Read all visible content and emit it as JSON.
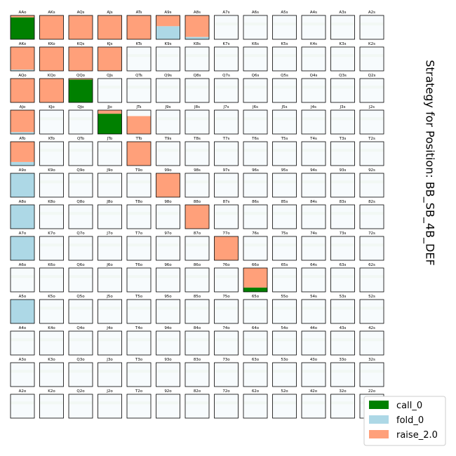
{
  "chart_data": {
    "type": "heatmap",
    "title": "Strategy for Position: BB_SB_4B_DEF",
    "actions": [
      {
        "key": "call",
        "label": "call_0",
        "color": "#008000"
      },
      {
        "key": "fold",
        "label": "fold_0",
        "color": "#add8e6"
      },
      {
        "key": "raise",
        "label": "raise_2.0",
        "color": "#ffa07a"
      }
    ],
    "cell_background": "#f7fbfd",
    "ranks": [
      "A",
      "K",
      "Q",
      "J",
      "T",
      "9",
      "8",
      "7",
      "6",
      "5",
      "4",
      "3",
      "2"
    ],
    "hands": [
      [
        "AAo",
        "AKs",
        "AQs",
        "AJs",
        "ATs",
        "A9s",
        "A8s",
        "A7s",
        "A6s",
        "A5s",
        "A4s",
        "A3s",
        "A2s"
      ],
      [
        "AKo",
        "KKo",
        "KQs",
        "KJs",
        "KTs",
        "K9s",
        "K8s",
        "K7s",
        "K6s",
        "K5s",
        "K4s",
        "K3s",
        "K2s"
      ],
      [
        "AQo",
        "KQo",
        "QQo",
        "QJs",
        "QTs",
        "Q9s",
        "Q8s",
        "Q7s",
        "Q6s",
        "Q5s",
        "Q4s",
        "Q3s",
        "Q2s"
      ],
      [
        "AJo",
        "KJo",
        "QJo",
        "JJo",
        "JTs",
        "J9s",
        "J8s",
        "J7s",
        "J6s",
        "J5s",
        "J4s",
        "J3s",
        "J2s"
      ],
      [
        "ATo",
        "KTo",
        "QTo",
        "JTo",
        "TTo",
        "T9s",
        "T8s",
        "T7s",
        "T6s",
        "T5s",
        "T4s",
        "T3s",
        "T2s"
      ],
      [
        "A9o",
        "K9o",
        "Q9o",
        "J9o",
        "T9o",
        "99o",
        "98s",
        "97s",
        "96s",
        "95s",
        "94s",
        "93s",
        "92s"
      ],
      [
        "A8o",
        "K8o",
        "Q8o",
        "J8o",
        "T8o",
        "98o",
        "88o",
        "87s",
        "86s",
        "85s",
        "84s",
        "83s",
        "82s"
      ],
      [
        "A7o",
        "K7o",
        "Q7o",
        "J7o",
        "T7o",
        "97o",
        "87o",
        "77o",
        "76s",
        "75s",
        "74s",
        "73s",
        "72s"
      ],
      [
        "A6o",
        "K6o",
        "Q6o",
        "J6o",
        "T6o",
        "96o",
        "86o",
        "76o",
        "66o",
        "65s",
        "64s",
        "63s",
        "62s"
      ],
      [
        "A5o",
        "K5o",
        "Q5o",
        "J5o",
        "T5o",
        "95o",
        "85o",
        "75o",
        "65o",
        "55o",
        "54s",
        "53s",
        "52s"
      ],
      [
        "A4o",
        "K4o",
        "Q4o",
        "J4o",
        "T4o",
        "94o",
        "84o",
        "74o",
        "64o",
        "54o",
        "44o",
        "43s",
        "42s"
      ],
      [
        "A3o",
        "K3o",
        "Q3o",
        "J3o",
        "T3o",
        "93o",
        "83o",
        "73o",
        "63o",
        "53o",
        "43o",
        "33o",
        "32s"
      ],
      [
        "A2o",
        "K2o",
        "Q2o",
        "J2o",
        "T2o",
        "92o",
        "82o",
        "72o",
        "62o",
        "52o",
        "42o",
        "32o",
        "22o"
      ]
    ],
    "strategies": {
      "AAo": {
        "call": 0.92,
        "fold": 0.0,
        "raise": 0.08
      },
      "AKs": {
        "call": 0.0,
        "fold": 0.0,
        "raise": 1.0
      },
      "AQs": {
        "call": 0.0,
        "fold": 0.0,
        "raise": 1.0
      },
      "AJs": {
        "call": 0.0,
        "fold": 0.0,
        "raise": 1.0
      },
      "ATs": {
        "call": 0.0,
        "fold": 0.0,
        "raise": 1.0
      },
      "A9s": {
        "call": 0.0,
        "fold": 0.55,
        "raise": 0.45
      },
      "A8s": {
        "call": 0.0,
        "fold": 0.1,
        "raise": 0.9
      },
      "AKo": {
        "call": 0.0,
        "fold": 0.05,
        "raise": 0.95
      },
      "KKo": {
        "call": 0.0,
        "fold": 0.0,
        "raise": 1.0
      },
      "KQs": {
        "call": 0.0,
        "fold": 0.0,
        "raise": 1.0
      },
      "KJs": {
        "call": 0.0,
        "fold": 0.0,
        "raise": 1.0
      },
      "AQo": {
        "call": 0.0,
        "fold": 0.0,
        "raise": 1.0
      },
      "KQo": {
        "call": 0.0,
        "fold": 0.0,
        "raise": 1.0
      },
      "QQo": {
        "call": 0.96,
        "fold": 0.0,
        "raise": 0.04
      },
      "AJo": {
        "call": 0.0,
        "fold": 0.08,
        "raise": 0.92
      },
      "JJo": {
        "call": 0.85,
        "fold": 0.0,
        "raise": 0.15
      },
      "JTs": {
        "call": 0.0,
        "fold": 0.0,
        "raise": 0.75
      },
      "ATo": {
        "call": 0.0,
        "fold": 0.15,
        "raise": 0.85
      },
      "TTo": {
        "call": 0.0,
        "fold": 0.0,
        "raise": 1.0
      },
      "A9o": {
        "call": 0.0,
        "fold": 1.0,
        "raise": 0.0
      },
      "99o": {
        "call": 0.0,
        "fold": 0.0,
        "raise": 1.0
      },
      "A8o": {
        "call": 0.0,
        "fold": 1.0,
        "raise": 0.0
      },
      "88o": {
        "call": 0.0,
        "fold": 0.0,
        "raise": 1.0
      },
      "A7o": {
        "call": 0.0,
        "fold": 1.0,
        "raise": 0.0
      },
      "77o": {
        "call": 0.0,
        "fold": 0.0,
        "raise": 1.0
      },
      "66o": {
        "call": 0.18,
        "fold": 0.0,
        "raise": 0.82
      },
      "A5o": {
        "call": 0.0,
        "fold": 1.0,
        "raise": 0.0
      }
    }
  },
  "legend_title": "",
  "legend_position": "bottom-right"
}
